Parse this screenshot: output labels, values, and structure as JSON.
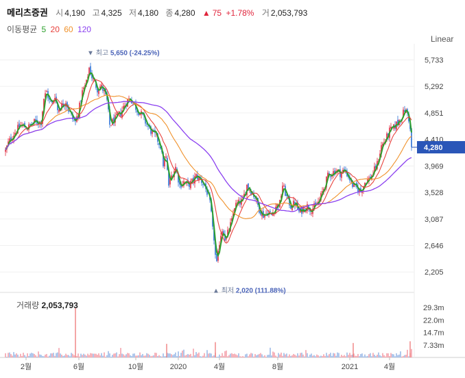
{
  "header": {
    "stock_name": "메리츠증권",
    "open_label": "시",
    "open": "4,190",
    "high_label": "고",
    "high": "4,325",
    "low_label": "저",
    "low": "4,180",
    "close_label": "종",
    "close": "4,280",
    "change_arrow": "▲",
    "change": "75",
    "change_pct": "+1.78%",
    "volume_label": "거",
    "volume": "2,053,793"
  },
  "moving_average": {
    "label": "이동평균",
    "periods": [
      {
        "period": "5",
        "color": "#2ca02c"
      },
      {
        "period": "20",
        "color": "#e8413c"
      },
      {
        "period": "60",
        "color": "#f0912a"
      },
      {
        "period": "120",
        "color": "#8a3ff0"
      }
    ]
  },
  "scale_button": "Linear",
  "volume_panel": {
    "label": "거래량",
    "value": "2,053,793"
  },
  "colors": {
    "up": "#e0243b",
    "down": "#2a6fd6",
    "current_badge": "#2a56b8"
  },
  "chart_data": {
    "type": "candlestick",
    "price_axis": {
      "ticks": [
        "5,733",
        "5,292",
        "4,851",
        "4,410",
        "3,969",
        "3,528",
        "3,087",
        "2,646",
        "2,205"
      ],
      "range": [
        1900,
        6000
      ]
    },
    "volume_axis": {
      "ticks": [
        "29.3m",
        "22.0m",
        "14.7m",
        "7.33m"
      ],
      "range": [
        0,
        37000000
      ]
    },
    "x_axis": {
      "ticks": [
        "2월",
        "6월",
        "10월",
        "2020",
        "4월",
        "8월",
        "2021",
        "4월"
      ]
    },
    "current_price_label": "4,280",
    "annotations": {
      "high": {
        "marker": "▼",
        "label": "최고",
        "value": "5,650 (-24.25%)"
      },
      "low": {
        "marker": "▲",
        "label": "최저",
        "value": "2,020 (111.88%)"
      }
    },
    "price_path": [
      [
        0,
        4420
      ],
      [
        6,
        4150
      ],
      [
        12,
        4350
      ],
      [
        20,
        4500
      ],
      [
        30,
        4650
      ],
      [
        40,
        4600
      ],
      [
        50,
        4700
      ],
      [
        56,
        4700
      ],
      [
        60,
        4700
      ],
      [
        64,
        5100
      ],
      [
        68,
        5200
      ],
      [
        72,
        5050
      ],
      [
        76,
        5000
      ],
      [
        80,
        5150
      ],
      [
        84,
        4900
      ],
      [
        88,
        4950
      ],
      [
        92,
        5000
      ],
      [
        96,
        5050
      ],
      [
        100,
        4900
      ],
      [
        106,
        4750
      ],
      [
        110,
        4700
      ],
      [
        115,
        4900
      ],
      [
        120,
        5200
      ],
      [
        126,
        5350
      ],
      [
        130,
        5600
      ],
      [
        134,
        5450
      ],
      [
        138,
        5350
      ],
      [
        142,
        5250
      ],
      [
        147,
        5300
      ],
      [
        152,
        5200
      ],
      [
        156,
        5050
      ],
      [
        160,
        4650
      ],
      [
        164,
        4700
      ],
      [
        168,
        4750
      ],
      [
        172,
        4800
      ],
      [
        176,
        4850
      ],
      [
        180,
        4950
      ],
      [
        185,
        5050
      ],
      [
        190,
        5100
      ],
      [
        195,
        5000
      ],
      [
        200,
        4900
      ],
      [
        205,
        4850
      ],
      [
        212,
        4700
      ],
      [
        220,
        4550
      ],
      [
        228,
        4450
      ],
      [
        234,
        4300
      ],
      [
        238,
        4000
      ],
      [
        242,
        4100
      ],
      [
        246,
        3650
      ],
      [
        250,
        3800
      ],
      [
        256,
        3950
      ],
      [
        262,
        3650
      ],
      [
        268,
        3700
      ],
      [
        274,
        3650
      ],
      [
        280,
        3700
      ],
      [
        286,
        3800
      ],
      [
        292,
        3750
      ],
      [
        298,
        3650
      ],
      [
        303,
        3500
      ],
      [
        307,
        3300
      ],
      [
        310,
        2900
      ],
      [
        313,
        2700
      ],
      [
        315,
        2250
      ],
      [
        318,
        2500
      ],
      [
        321,
        2800
      ],
      [
        325,
        2950
      ],
      [
        329,
        2700
      ],
      [
        333,
        2900
      ],
      [
        338,
        3050
      ],
      [
        342,
        3300
      ],
      [
        348,
        3350
      ],
      [
        354,
        3400
      ],
      [
        360,
        3650
      ],
      [
        366,
        3550
      ],
      [
        372,
        3450
      ],
      [
        378,
        3250
      ],
      [
        384,
        3150
      ],
      [
        390,
        3200
      ],
      [
        396,
        3150
      ],
      [
        402,
        3300
      ],
      [
        408,
        3350
      ],
      [
        412,
        3650
      ],
      [
        418,
        3450
      ],
      [
        424,
        3300
      ],
      [
        430,
        3350
      ],
      [
        436,
        3200
      ],
      [
        442,
        3250
      ],
      [
        448,
        3300
      ],
      [
        454,
        3250
      ],
      [
        460,
        3300
      ],
      [
        466,
        3400
      ],
      [
        472,
        3600
      ],
      [
        478,
        3800
      ],
      [
        484,
        3850
      ],
      [
        490,
        3900
      ],
      [
        496,
        3850
      ],
      [
        502,
        3900
      ],
      [
        508,
        3800
      ],
      [
        514,
        3650
      ],
      [
        520,
        3600
      ],
      [
        526,
        3550
      ],
      [
        532,
        3700
      ],
      [
        538,
        3750
      ],
      [
        544,
        3850
      ],
      [
        550,
        4000
      ],
      [
        556,
        4300
      ],
      [
        562,
        4400
      ],
      [
        568,
        4550
      ],
      [
        574,
        4600
      ],
      [
        580,
        4700
      ],
      [
        586,
        4800
      ],
      [
        590,
        4900
      ],
      [
        594,
        4850
      ],
      [
        597,
        4700
      ],
      [
        600,
        4280
      ]
    ],
    "volume_spikes": [
      [
        110,
        29300000
      ],
      [
        243,
        8000000
      ],
      [
        314,
        9000000
      ],
      [
        515,
        8500000
      ],
      [
        598,
        9500000
      ]
    ]
  }
}
